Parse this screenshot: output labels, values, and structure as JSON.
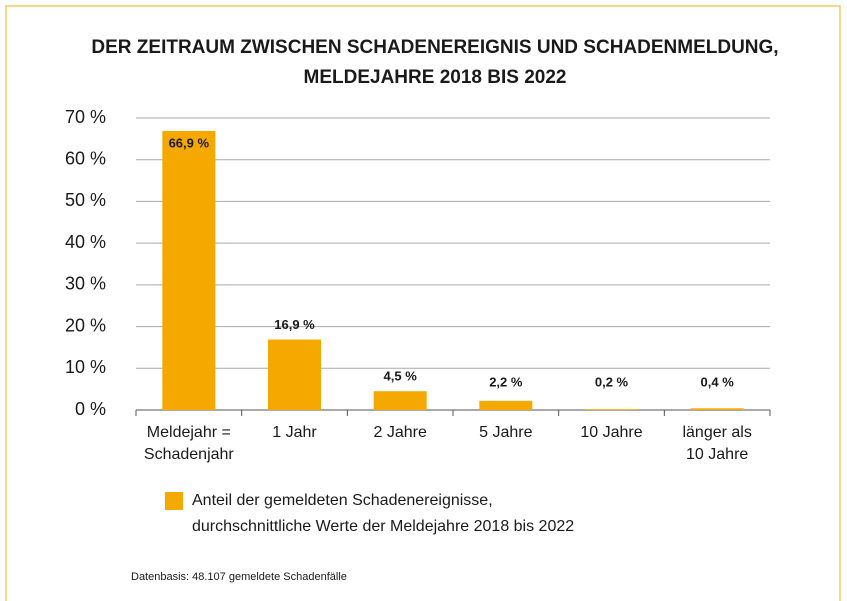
{
  "chart_data": {
    "type": "bar",
    "title": [
      "DER ZEITRAUM ZWISCHEN SCHADENEREIGNIS UND SCHADENMELDUNG,",
      "MELDEJAHRE 2018 BIS 2022"
    ],
    "categories": [
      [
        "Meldejahr =",
        "Schadenjahr"
      ],
      [
        "1 Jahr"
      ],
      [
        "2 Jahre"
      ],
      [
        "5 Jahre"
      ],
      [
        "10 Jahre"
      ],
      [
        "länger als",
        "10 Jahre"
      ]
    ],
    "series": [
      {
        "name": [
          "Anteil der gemeldeten Schadenereignisse,",
          "durchschnittliche Werte der Meldejahre 2018 bis 2022"
        ],
        "color": "#f5a800",
        "values": [
          66.9,
          16.9,
          4.5,
          2.2,
          0.2,
          0.4
        ],
        "value_labels": [
          "66,9 %",
          "16,9 %",
          "4,5 %",
          "2,2 %",
          "0,2 %",
          "0,4 %"
        ]
      }
    ],
    "ylim": [
      0,
      70
    ],
    "yticks": [
      {
        "value": 0,
        "label": "0 %"
      },
      {
        "value": 10,
        "label": "10 %"
      },
      {
        "value": 20,
        "label": "20 %"
      },
      {
        "value": 30,
        "label": "30 %"
      },
      {
        "value": 40,
        "label": "40 %"
      },
      {
        "value": 50,
        "label": "50 %"
      },
      {
        "value": 60,
        "label": "60 %"
      },
      {
        "value": 70,
        "label": "70 %"
      }
    ],
    "grid": true,
    "source": "Datenbasis: 48.107 gemeldete Schadenfälle"
  }
}
